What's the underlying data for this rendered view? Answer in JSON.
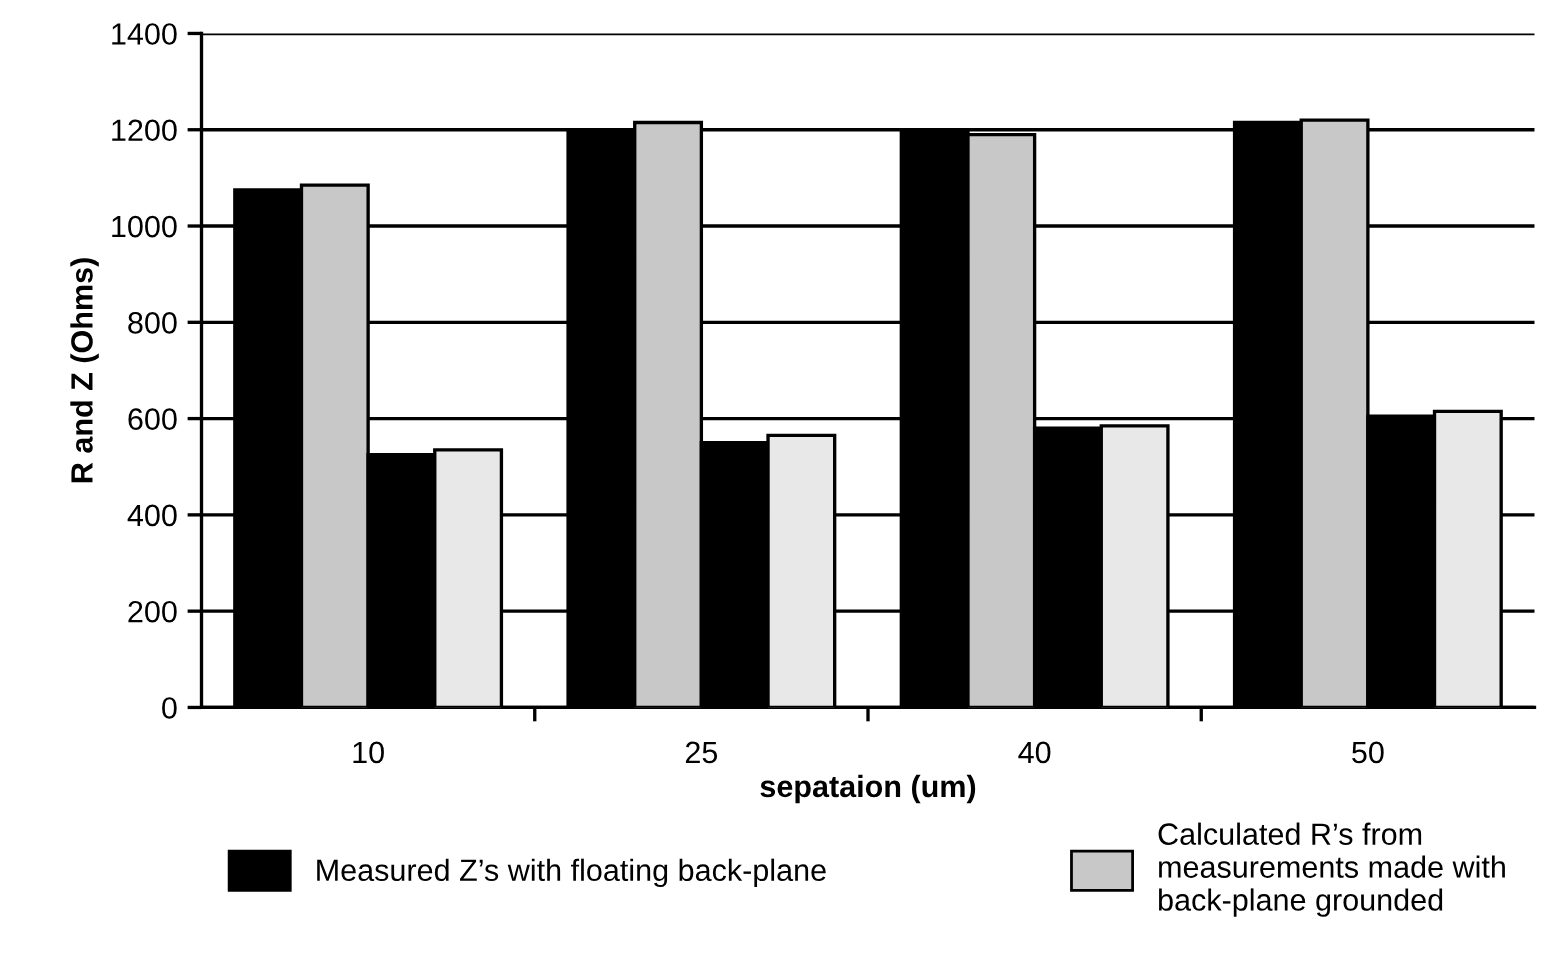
{
  "chart_data": {
    "type": "bar",
    "xlabel": "sepataion (um)",
    "ylabel": "R and Z (Ohms)",
    "categories": [
      "10",
      "25",
      "40",
      "50"
    ],
    "series": [
      {
        "name": "Measured Z’s with floating back-plane",
        "color": "#000000",
        "values": [
          1075,
          1200,
          1200,
          1215
        ]
      },
      {
        "name": "Calculated R’s from\nmeasurements made with\nback-plane grounded",
        "color": "#c8c8c8",
        "values": [
          1085,
          1215,
          1190,
          1220
        ]
      },
      {
        "color": "#000000",
        "values": [
          525,
          550,
          580,
          605
        ]
      },
      {
        "color": "#e8e8e8",
        "values": [
          535,
          565,
          585,
          615
        ]
      }
    ],
    "ylim": [
      0,
      1400
    ],
    "yticks": [
      0,
      200,
      400,
      600,
      800,
      1000,
      1200,
      1400
    ],
    "grid": "y",
    "legend": "bottom"
  }
}
